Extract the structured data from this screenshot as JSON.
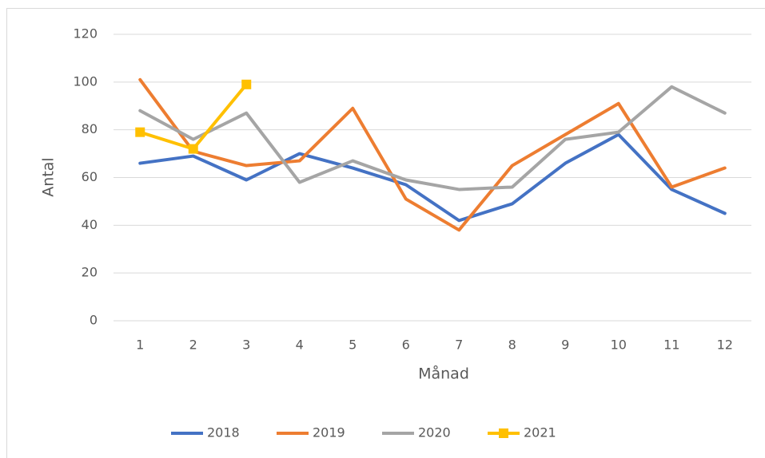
{
  "chart_data": {
    "type": "line",
    "xlabel": "Månad",
    "ylabel": "Antal",
    "categories": [
      "1",
      "2",
      "3",
      "4",
      "5",
      "6",
      "7",
      "8",
      "9",
      "10",
      "11",
      "12"
    ],
    "series": [
      {
        "name": "2018",
        "color": "#4472c4",
        "values": [
          66,
          69,
          59,
          70,
          64,
          57,
          42,
          49,
          66,
          78,
          55,
          45
        ]
      },
      {
        "name": "2019",
        "color": "#ed7d31",
        "values": [
          101,
          71,
          65,
          67,
          89,
          51,
          38,
          65,
          78,
          91,
          56,
          64
        ]
      },
      {
        "name": "2020",
        "color": "#a5a5a5",
        "values": [
          88,
          76,
          87,
          58,
          67,
          59,
          55,
          56,
          76,
          79,
          98,
          87
        ]
      },
      {
        "name": "2021",
        "color": "#ffc000",
        "marker": "square",
        "values": [
          79,
          72,
          99,
          null,
          null,
          null,
          null,
          null,
          null,
          null,
          null,
          null
        ]
      }
    ],
    "ylim": [
      0,
      120
    ],
    "yticks": [
      0,
      20,
      40,
      60,
      80,
      100,
      120
    ],
    "grid": true,
    "legend": "bottom"
  }
}
